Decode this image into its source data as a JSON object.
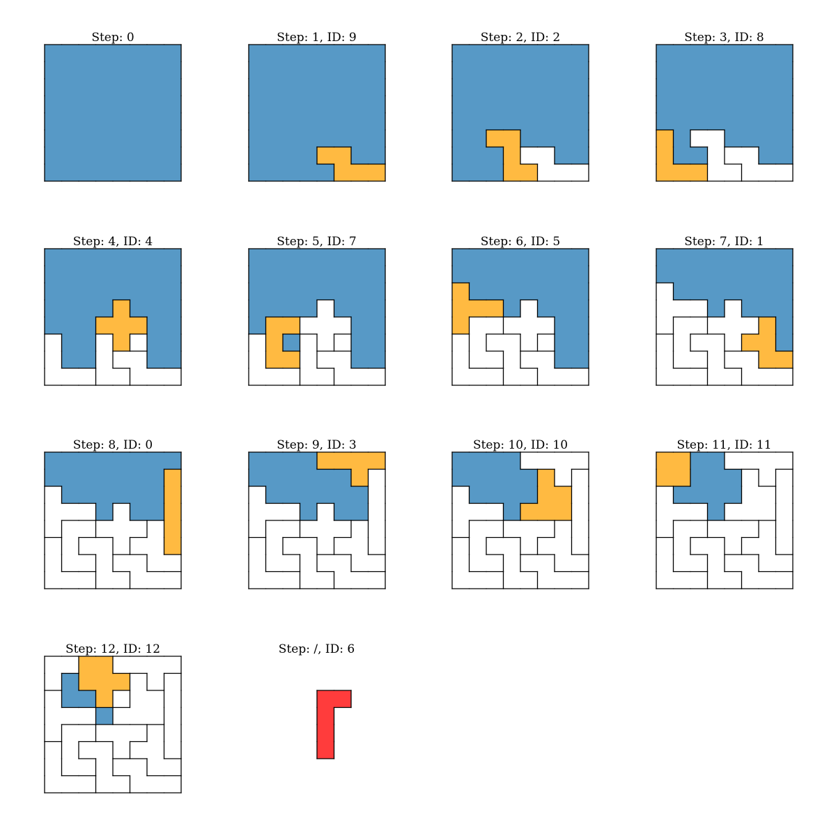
{
  "colors": {
    "empty": "#5799c6",
    "filled": "#ffffff",
    "current": "#ffba41",
    "leftover": "#ff3c3c",
    "line": "#000000"
  },
  "panels": [
    {
      "title": "Step: 0",
      "cells": [
        "BBBBBBBB",
        "BBBBBBBB",
        "BBBBBBBB",
        "BBBBBBBB",
        "BBBBBBBB",
        "BBBBBBBB",
        "BBBBBBBB",
        "BBBBBBBB"
      ],
      "ids": [
        [],
        [],
        [],
        [],
        [],
        [],
        [],
        []
      ]
    },
    {
      "title": "Step: 1, ID: 9",
      "cells": [
        "BBBBBBBB",
        "BBBBBBBB",
        "BBBBBBBB",
        "BBBBBBBB",
        "BBBBBBBB",
        "BBBBBBBB",
        "BBBBOOBB",
        "BBBBBOOO"
      ],
      "ids": [
        [
          0,
          0,
          0,
          0,
          0,
          0,
          0,
          0
        ],
        [
          0,
          0,
          0,
          0,
          0,
          0,
          0,
          0
        ],
        [
          0,
          0,
          0,
          0,
          0,
          0,
          0,
          0
        ],
        [
          0,
          0,
          0,
          0,
          0,
          0,
          0,
          0
        ],
        [
          0,
          0,
          0,
          0,
          0,
          0,
          0,
          0
        ],
        [
          0,
          0,
          0,
          0,
          0,
          0,
          0,
          0
        ],
        [
          0,
          0,
          0,
          0,
          9,
          9,
          0,
          0
        ],
        [
          0,
          0,
          0,
          0,
          0,
          9,
          9,
          9
        ]
      ]
    },
    {
      "title": "Step: 2, ID: 2",
      "cells": [
        "BBBBBBBB",
        "BBBBBBBB",
        "BBBBBBBB",
        "BBBBBBBB",
        "BBBBBBBB",
        "BBOOBBBB",
        "BBBOWWBB",
        "BBBOOWWW"
      ],
      "ids": [
        [
          0,
          0,
          0,
          0,
          0,
          0,
          0,
          0
        ],
        [
          0,
          0,
          0,
          0,
          0,
          0,
          0,
          0
        ],
        [
          0,
          0,
          0,
          0,
          0,
          0,
          0,
          0
        ],
        [
          0,
          0,
          0,
          0,
          0,
          0,
          0,
          0
        ],
        [
          0,
          0,
          0,
          0,
          0,
          0,
          0,
          0
        ],
        [
          0,
          0,
          2,
          2,
          0,
          0,
          0,
          0
        ],
        [
          0,
          0,
          0,
          2,
          9,
          9,
          0,
          0
        ],
        [
          0,
          0,
          0,
          2,
          2,
          9,
          9,
          9
        ]
      ]
    },
    {
      "title": "Step: 3, ID: 8",
      "cells": [
        "BBBBBBBB",
        "BBBBBBBB",
        "BBBBBBBB",
        "BBBBBBBB",
        "BBBBBBBB",
        "OBWWBBBB",
        "OBBWWWBB",
        "OOOWWWWW"
      ],
      "ids": [
        [
          0,
          0,
          0,
          0,
          0,
          0,
          0,
          0
        ],
        [
          0,
          0,
          0,
          0,
          0,
          0,
          0,
          0
        ],
        [
          0,
          0,
          0,
          0,
          0,
          0,
          0,
          0
        ],
        [
          0,
          0,
          0,
          0,
          0,
          0,
          0,
          0
        ],
        [
          0,
          0,
          0,
          0,
          0,
          0,
          0,
          0
        ],
        [
          8,
          0,
          2,
          2,
          0,
          0,
          0,
          0
        ],
        [
          8,
          0,
          0,
          2,
          9,
          9,
          0,
          0
        ],
        [
          8,
          8,
          8,
          2,
          2,
          9,
          9,
          9
        ]
      ]
    },
    {
      "title": "Step: 4, ID: 4",
      "cells": [
        "BBBBBBBB",
        "BBBBBBBB",
        "BBBBBBBB",
        "BBBBOBBB",
        "BBBOOOBB",
        "WBBWOWBB",
        "WBBWWWBB",
        "WWWWWWWW"
      ],
      "ids": [
        [
          0,
          0,
          0,
          0,
          0,
          0,
          0,
          0
        ],
        [
          0,
          0,
          0,
          0,
          0,
          0,
          0,
          0
        ],
        [
          0,
          0,
          0,
          0,
          0,
          0,
          0,
          0
        ],
        [
          0,
          0,
          0,
          0,
          4,
          0,
          0,
          0
        ],
        [
          0,
          0,
          0,
          4,
          4,
          4,
          0,
          0
        ],
        [
          8,
          0,
          2,
          2,
          4,
          0,
          0,
          0
        ],
        [
          8,
          0,
          0,
          2,
          9,
          9,
          0,
          0
        ],
        [
          8,
          8,
          8,
          2,
          2,
          9,
          9,
          9
        ]
      ]
    },
    {
      "title": "Step: 5, ID: 7",
      "cells": [
        "BBBBBBBB",
        "BBBBBBBB",
        "BBBBBBBB",
        "BBBBWBBB",
        "BOOWWWBB",
        "WOBWWWBB",
        "WOOWWWBB",
        "WWWWWWWW"
      ],
      "ids": [
        [
          0,
          0,
          0,
          0,
          0,
          0,
          0,
          0
        ],
        [
          0,
          0,
          0,
          0,
          0,
          0,
          0,
          0
        ],
        [
          0,
          0,
          0,
          0,
          0,
          0,
          0,
          0
        ],
        [
          0,
          0,
          0,
          0,
          4,
          0,
          0,
          0
        ],
        [
          0,
          7,
          7,
          4,
          4,
          4,
          0,
          0
        ],
        [
          8,
          7,
          2,
          2,
          4,
          0,
          0,
          0
        ],
        [
          8,
          7,
          7,
          2,
          9,
          9,
          0,
          0
        ],
        [
          8,
          8,
          8,
          2,
          2,
          9,
          9,
          9
        ]
      ]
    },
    {
      "title": "Step: 6, ID: 5",
      "cells": [
        "BBBBBBBB",
        "BBBBBBBB",
        "OBBBBBBB",
        "OOOBWBBB",
        "OWWWWWBB",
        "WWWWWWBB",
        "WWWWWWBB",
        "WWWWWWWW"
      ],
      "ids": [
        [
          0,
          0,
          0,
          0,
          0,
          0,
          0,
          0
        ],
        [
          0,
          0,
          0,
          0,
          0,
          0,
          0,
          0
        ],
        [
          5,
          0,
          0,
          0,
          0,
          0,
          0,
          0
        ],
        [
          5,
          5,
          5,
          0,
          4,
          0,
          0,
          0
        ],
        [
          5,
          7,
          7,
          4,
          4,
          4,
          0,
          0
        ],
        [
          8,
          7,
          2,
          2,
          4,
          0,
          0,
          0
        ],
        [
          8,
          7,
          7,
          2,
          9,
          9,
          0,
          0
        ],
        [
          8,
          8,
          8,
          2,
          2,
          9,
          9,
          9
        ]
      ]
    },
    {
      "title": "Step: 7, ID: 1",
      "cells": [
        "BBBBBBBB",
        "BBBBBBBB",
        "WBBBBBBB",
        "WWWBWBBB",
        "WWWWWWOB",
        "WWWWWOOB",
        "WWWWWWOO",
        "WWWWWWWW"
      ],
      "ids": [
        [
          0,
          0,
          0,
          0,
          0,
          0,
          0,
          0
        ],
        [
          0,
          0,
          0,
          0,
          0,
          0,
          0,
          0
        ],
        [
          5,
          0,
          0,
          0,
          0,
          0,
          0,
          0
        ],
        [
          5,
          5,
          5,
          0,
          4,
          0,
          0,
          0
        ],
        [
          5,
          7,
          7,
          4,
          4,
          4,
          1,
          0
        ],
        [
          8,
          7,
          2,
          2,
          4,
          1,
          1,
          0
        ],
        [
          8,
          7,
          7,
          2,
          9,
          9,
          1,
          1
        ],
        [
          8,
          8,
          8,
          2,
          2,
          9,
          9,
          9
        ]
      ]
    },
    {
      "title": "Step: 8, ID: 0",
      "cells": [
        "BBBBBBBB",
        "BBBBBBBO",
        "WBBBBBBO",
        "WWWBWBBO",
        "WWWWWWWO",
        "WWWWWWWO",
        "WWWWWWWW",
        "WWWWWWWW"
      ],
      "ids": [
        [
          0,
          0,
          0,
          0,
          0,
          0,
          0,
          0
        ],
        [
          0,
          0,
          0,
          0,
          0,
          0,
          0,
          10
        ],
        [
          5,
          0,
          0,
          0,
          0,
          0,
          0,
          10
        ],
        [
          5,
          5,
          5,
          0,
          4,
          0,
          0,
          10
        ],
        [
          5,
          7,
          7,
          4,
          4,
          4,
          1,
          10
        ],
        [
          8,
          7,
          2,
          2,
          4,
          1,
          1,
          10
        ],
        [
          8,
          7,
          7,
          2,
          9,
          9,
          1,
          1
        ],
        [
          8,
          8,
          8,
          2,
          2,
          9,
          9,
          9
        ]
      ]
    },
    {
      "title": "Step: 9, ID: 3",
      "cells": [
        "BBBBOOOO",
        "BBBBBBOW",
        "WBBBBBBW",
        "WWWBWBBW",
        "WWWWWWWW",
        "WWWWWWWW",
        "WWWWWWWW",
        "WWWWWWWW"
      ],
      "ids": [
        [
          0,
          0,
          0,
          0,
          3,
          3,
          3,
          3
        ],
        [
          0,
          0,
          0,
          0,
          0,
          0,
          3,
          10
        ],
        [
          5,
          0,
          0,
          0,
          0,
          0,
          0,
          10
        ],
        [
          5,
          5,
          5,
          0,
          4,
          0,
          0,
          10
        ],
        [
          5,
          7,
          7,
          4,
          4,
          4,
          1,
          10
        ],
        [
          8,
          7,
          2,
          2,
          4,
          1,
          1,
          10
        ],
        [
          8,
          7,
          7,
          2,
          9,
          9,
          1,
          1
        ],
        [
          8,
          8,
          8,
          2,
          2,
          9,
          9,
          9
        ]
      ]
    },
    {
      "title": "Step: 10, ID: 10",
      "cells": [
        "BBBBWWWW",
        "BBBBBOWW",
        "WBBBBOOW",
        "WWWBOOOW",
        "WWWWWWWW",
        "WWWWWWWW",
        "WWWWWWWW",
        "WWWWWWWW"
      ],
      "ids": [
        [
          0,
          0,
          0,
          0,
          3,
          3,
          3,
          3
        ],
        [
          0,
          0,
          0,
          0,
          0,
          11,
          3,
          10
        ],
        [
          5,
          0,
          0,
          0,
          0,
          11,
          11,
          10
        ],
        [
          5,
          5,
          5,
          0,
          11,
          11,
          11,
          10
        ],
        [
          5,
          7,
          7,
          4,
          4,
          4,
          1,
          10
        ],
        [
          8,
          7,
          2,
          2,
          4,
          1,
          1,
          10
        ],
        [
          8,
          7,
          7,
          2,
          9,
          9,
          1,
          1
        ],
        [
          8,
          8,
          8,
          2,
          2,
          9,
          9,
          9
        ]
      ]
    },
    {
      "title": "Step: 11, ID: 11",
      "cells": [
        "OOBBWWWW",
        "OOBBBWWW",
        "WBBBBWWW",
        "WWWBWWWW",
        "WWWWWWWW",
        "WWWWWWWW",
        "WWWWWWWW",
        "WWWWWWWW"
      ],
      "ids": [
        [
          12,
          12,
          0,
          0,
          3,
          3,
          3,
          3
        ],
        [
          12,
          12,
          0,
          0,
          0,
          11,
          3,
          10
        ],
        [
          5,
          0,
          0,
          0,
          0,
          11,
          11,
          10
        ],
        [
          5,
          5,
          5,
          0,
          11,
          11,
          11,
          10
        ],
        [
          5,
          7,
          7,
          4,
          4,
          4,
          1,
          10
        ],
        [
          8,
          7,
          2,
          2,
          4,
          1,
          1,
          10
        ],
        [
          8,
          7,
          7,
          2,
          9,
          9,
          1,
          1
        ],
        [
          8,
          8,
          8,
          2,
          2,
          9,
          9,
          9
        ]
      ]
    },
    {
      "title": "Step: 12, ID: 12",
      "cells": [
        "WWOOWWWW",
        "WBOOOWWW",
        "WBBOWWWW",
        "WWWBWWWW",
        "WWWWWWWW",
        "WWWWWWWW",
        "WWWWWWWW",
        "WWWWWWWW"
      ],
      "ids": [
        [
          12,
          12,
          13,
          13,
          3,
          3,
          3,
          3
        ],
        [
          12,
          0,
          13,
          13,
          13,
          11,
          3,
          10
        ],
        [
          5,
          0,
          0,
          13,
          0,
          11,
          11,
          10
        ],
        [
          5,
          5,
          5,
          0,
          11,
          11,
          11,
          10
        ],
        [
          5,
          7,
          7,
          4,
          4,
          4,
          1,
          10
        ],
        [
          8,
          7,
          2,
          2,
          4,
          1,
          1,
          10
        ],
        [
          8,
          7,
          7,
          2,
          9,
          9,
          1,
          1
        ],
        [
          8,
          8,
          8,
          2,
          2,
          9,
          9,
          9
        ]
      ]
    },
    {
      "title": "Step: /, ID: 6",
      "cells": [
        "........",
        "........",
        "....RR..",
        "....R...",
        "....R...",
        "....R...",
        "........",
        "........"
      ],
      "ids": [
        [
          0,
          0,
          0,
          0,
          0,
          0,
          0,
          0
        ],
        [
          0,
          0,
          0,
          0,
          0,
          0,
          0,
          0
        ],
        [
          0,
          0,
          0,
          0,
          6,
          6,
          0,
          0
        ],
        [
          0,
          0,
          0,
          0,
          6,
          0,
          0,
          0
        ],
        [
          0,
          0,
          0,
          0,
          6,
          0,
          0,
          0
        ],
        [
          0,
          0,
          0,
          0,
          6,
          0,
          0,
          0
        ],
        [
          0,
          0,
          0,
          0,
          0,
          0,
          0,
          0
        ],
        [
          0,
          0,
          0,
          0,
          0,
          0,
          0,
          0
        ]
      ]
    }
  ]
}
